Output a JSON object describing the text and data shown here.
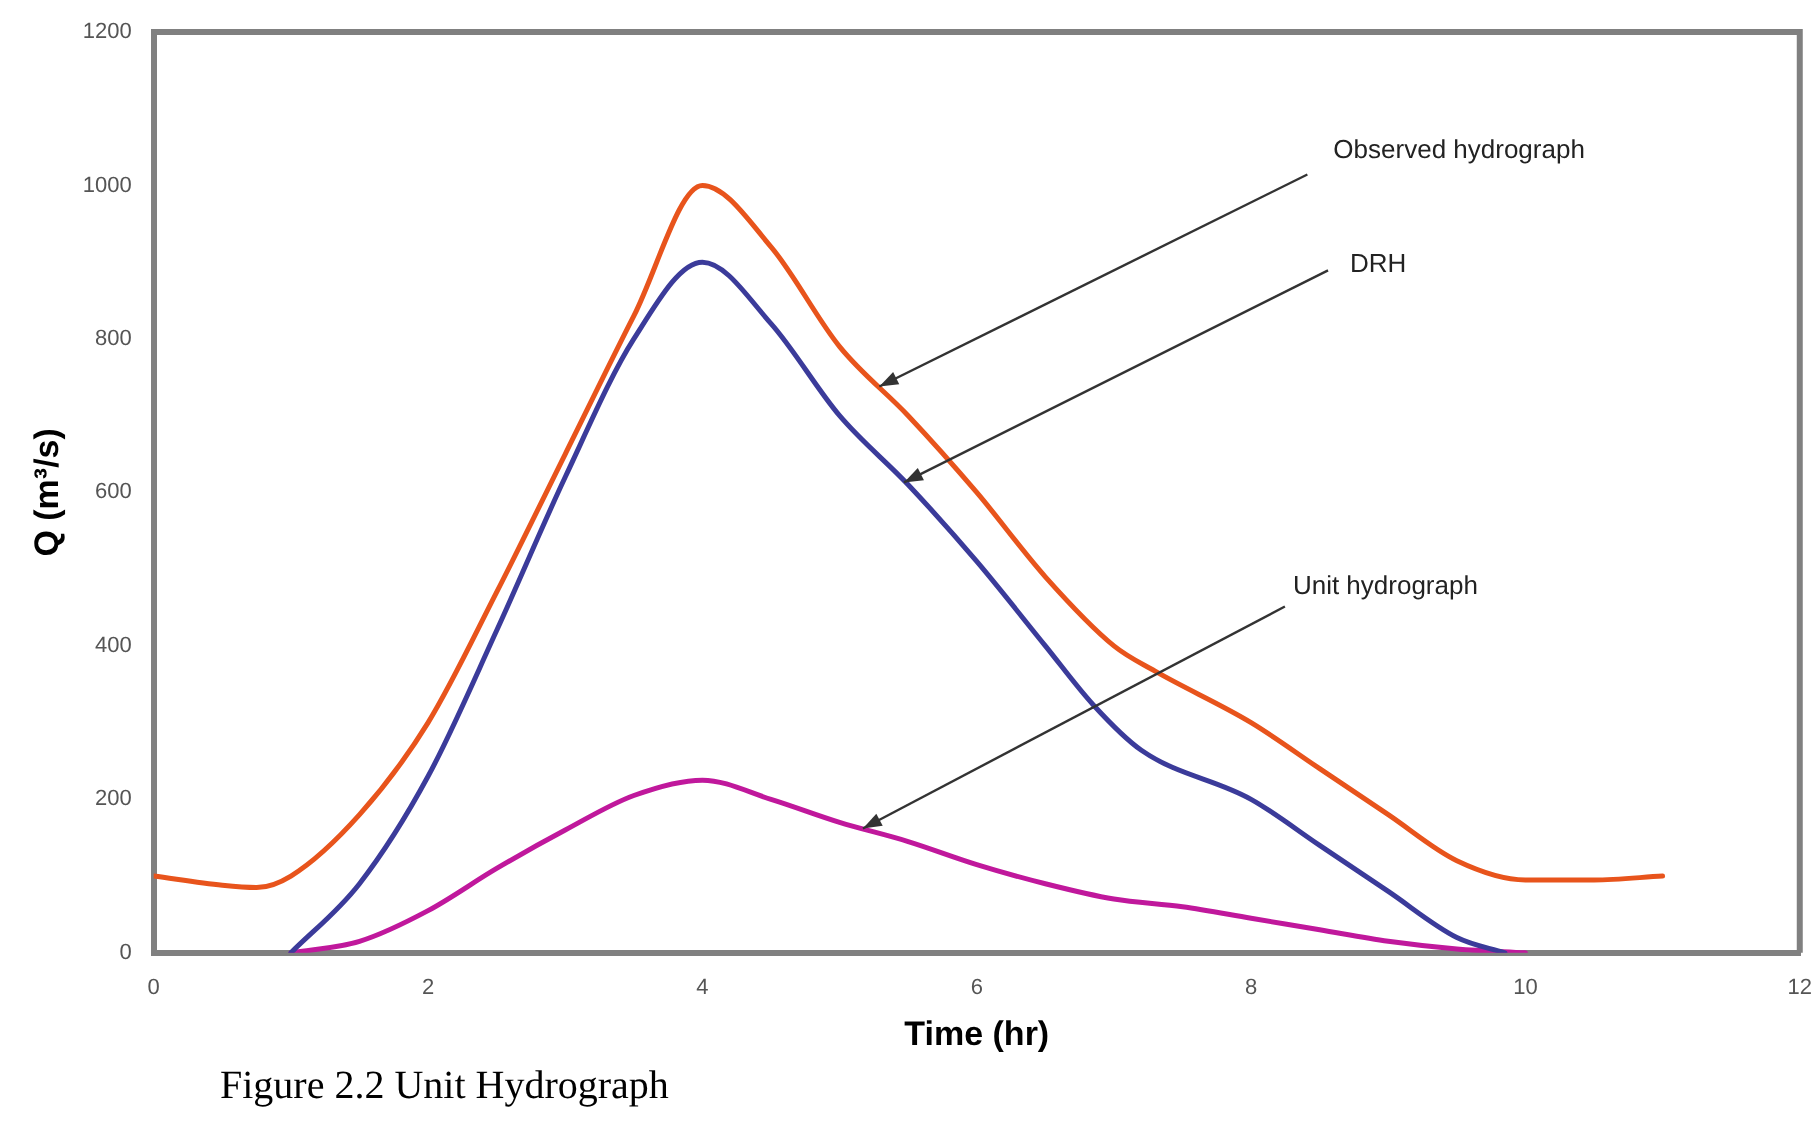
{
  "chart_data": {
    "type": "line",
    "xlabel": "Time (hr)",
    "ylabel": "Q (m³/s)",
    "xlim": [
      0,
      12
    ],
    "xticks": [
      0,
      2,
      4,
      6,
      8,
      10,
      12
    ],
    "ylim": [
      0,
      1200
    ],
    "yticks": [
      0,
      200,
      400,
      600,
      800,
      1000,
      1200
    ],
    "grid": false,
    "legend": false,
    "marker": "none",
    "line_style": "solid",
    "series": [
      {
        "color": "#e8541c",
        "x": [
          0,
          0.5,
          0.75,
          1,
          1.5,
          2,
          2.5,
          3,
          3.5,
          4,
          4.5,
          5,
          5.5,
          6,
          6.5,
          7,
          7.3,
          8,
          8.5,
          9,
          9.5,
          10,
          10.5,
          11
        ],
        "values": [
          100,
          88,
          85,
          100,
          180,
          300,
          470,
          650,
          830,
          1000,
          920,
          790,
          700,
          600,
          490,
          400,
          367,
          300,
          240,
          180,
          120,
          95,
          95,
          100
        ]
      },
      {
        "color": "#3b3b9a",
        "x": [
          1,
          1.5,
          2,
          2.5,
          3,
          3.5,
          4,
          4.5,
          5,
          5.5,
          6,
          6.5,
          6.85,
          7.2,
          8,
          8.5,
          9,
          9.5,
          9.85
        ],
        "values": [
          0,
          90,
          230,
          420,
          620,
          800,
          900,
          820,
          700,
          610,
          510,
          400,
          323,
          264,
          200,
          140,
          80,
          20,
          0
        ]
      },
      {
        "color": "#c0189c",
        "x": [
          1,
          1.5,
          2,
          2.5,
          3,
          3.5,
          4,
          4.5,
          5,
          5.5,
          6,
          6.5,
          7,
          7.5,
          8,
          8.5,
          9,
          9.5,
          10
        ],
        "values": [
          0,
          15,
          55,
          110,
          160,
          205,
          225,
          200,
          170,
          145,
          115,
          90,
          70,
          60,
          45,
          30,
          15,
          5,
          0
        ]
      }
    ],
    "annotations": [
      {
        "text": "Observed hydrograph",
        "x": 5.29,
        "y": 738
      },
      {
        "text": "DRH",
        "x": 5.47,
        "y": 613
      },
      {
        "text": "Unit hydrograph",
        "x": 5.17,
        "y": 162
      },
      "Figure 2.2 Unit Hydrograph"
    ]
  }
}
